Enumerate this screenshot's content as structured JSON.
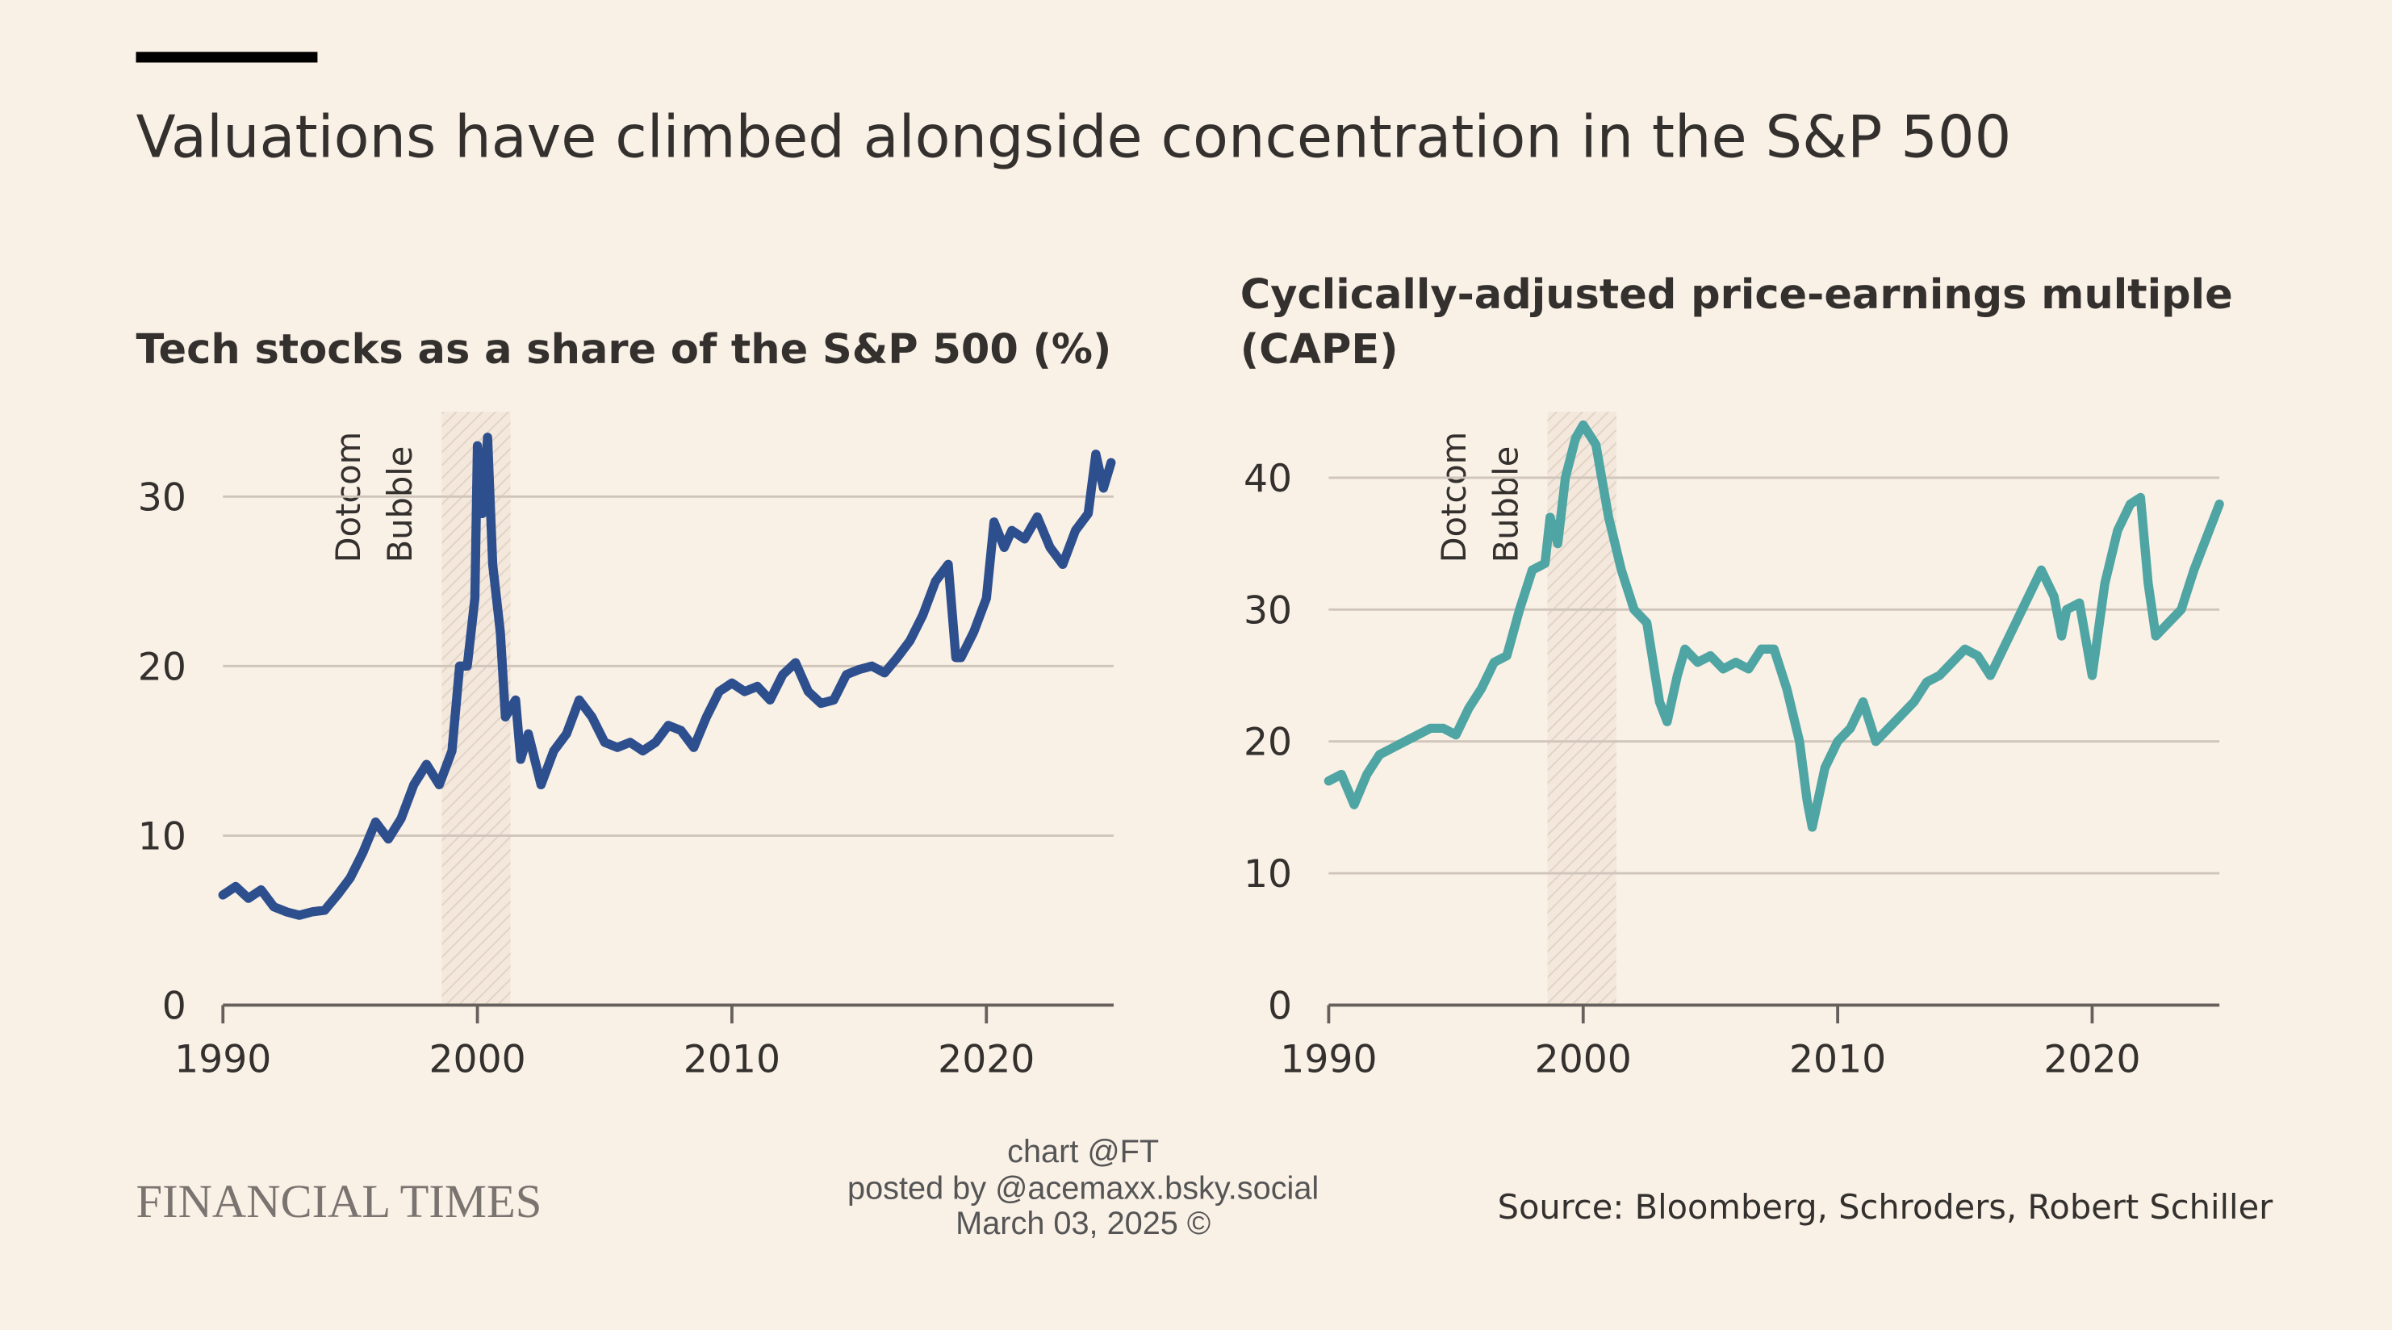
{
  "title": "Valuations have climbed alongside concentration in the S&P 500",
  "chart_data": [
    {
      "type": "line",
      "title": [
        "Tech stocks as a share of the S&P 500 (%)"
      ],
      "annotations": [
        "Dotcom",
        "Bubble"
      ],
      "highlight_x": [
        1998.6,
        2001.3
      ],
      "xlim": [
        1990,
        2025
      ],
      "xticks": [
        1990,
        2000,
        2010,
        2020
      ],
      "ylim": [
        0,
        35
      ],
      "yticks": [
        0,
        10,
        20,
        30
      ],
      "grid": true,
      "series": [
        {
          "color": "#2d4f8e",
          "x": [
            1990,
            1990.5,
            1991,
            1991.5,
            1992,
            1992.5,
            1993,
            1993.5,
            1994,
            1994.5,
            1995,
            1995.5,
            1996,
            1996.5,
            1997,
            1997.5,
            1998,
            1998.5,
            1999,
            1999.3,
            1999.6,
            1999.9,
            2000,
            2000.2,
            2000.4,
            2000.6,
            2000.9,
            2001.1,
            2001.5,
            2001.7,
            2002,
            2002.5,
            2003,
            2003.5,
            2004,
            2004.5,
            2005,
            2005.5,
            2006,
            2006.5,
            2007,
            2007.5,
            2008,
            2008.5,
            2009,
            2009.5,
            2010,
            2010.5,
            2011,
            2011.5,
            2012,
            2012.5,
            2013,
            2013.5,
            2014,
            2014.5,
            2015,
            2015.5,
            2016,
            2016.5,
            2017,
            2017.5,
            2018,
            2018.5,
            2018.8,
            2019,
            2019.5,
            2020,
            2020.3,
            2020.7,
            2021,
            2021.5,
            2022,
            2022.5,
            2023,
            2023.5,
            2024,
            2024.3,
            2024.6,
            2024.9
          ],
          "values": [
            6.5,
            7,
            6.3,
            6.8,
            5.8,
            5.5,
            5.3,
            5.5,
            5.6,
            6.5,
            7.5,
            9,
            10.8,
            9.8,
            11,
            13,
            14.2,
            13,
            15,
            20,
            20,
            24,
            33,
            29,
            33.5,
            26,
            22,
            17,
            18,
            14.5,
            16,
            13,
            15,
            16,
            18,
            17,
            15.5,
            15.2,
            15.5,
            15,
            15.5,
            16.5,
            16.2,
            15.2,
            17,
            18.5,
            19,
            18.5,
            18.8,
            18,
            19.5,
            20.2,
            18.5,
            17.8,
            18,
            19.5,
            19.8,
            20,
            19.6,
            20.5,
            21.5,
            23,
            25,
            26,
            20.5,
            20.5,
            22,
            24,
            28.5,
            27,
            28,
            27.5,
            28.8,
            27,
            26,
            28,
            29,
            32.5,
            30.5,
            32
          ]
        }
      ]
    },
    {
      "type": "line",
      "title": [
        "Cyclically-adjusted price-earnings multiple",
        "(CAPE)"
      ],
      "annotations": [
        "Dotcom",
        "Bubble"
      ],
      "highlight_x": [
        1998.6,
        2001.3
      ],
      "xlim": [
        1990,
        2025
      ],
      "xticks": [
        1990,
        2000,
        2010,
        2020
      ],
      "ylim": [
        0,
        45
      ],
      "yticks": [
        0,
        10,
        20,
        30,
        40
      ],
      "grid": true,
      "series": [
        {
          "color": "#4fa5a3",
          "x": [
            1990,
            1990.5,
            1991,
            1991.5,
            1992,
            1992.5,
            1993,
            1993.5,
            1994,
            1994.5,
            1995,
            1995.5,
            1996,
            1996.5,
            1997,
            1997.5,
            1998,
            1998.5,
            1998.7,
            1999,
            1999.3,
            1999.7,
            2000,
            2000.5,
            2001,
            2001.5,
            2002,
            2002.5,
            2003,
            2003.3,
            2003.7,
            2004,
            2004.5,
            2005,
            2005.5,
            2006,
            2006.5,
            2007,
            2007.5,
            2008,
            2008.5,
            2008.8,
            2009,
            2009.5,
            2010,
            2010.5,
            2011,
            2011.5,
            2012,
            2012.5,
            2013,
            2013.5,
            2014,
            2014.5,
            2015,
            2015.5,
            2016,
            2016.5,
            2017,
            2017.5,
            2018,
            2018.5,
            2018.8,
            2019,
            2019.5,
            2020,
            2020.5,
            2021,
            2021.5,
            2021.9,
            2022.2,
            2022.5,
            2023,
            2023.5,
            2024,
            2024.5,
            2025
          ],
          "values": [
            17,
            17.5,
            15.2,
            17.5,
            19,
            19.5,
            20,
            20.5,
            21,
            21,
            20.5,
            22.5,
            24,
            26,
            26.5,
            30,
            33,
            33.5,
            37,
            35,
            40,
            43,
            44,
            42.5,
            37,
            33,
            30,
            29,
            23,
            21.5,
            25,
            27,
            26,
            26.5,
            25.5,
            26,
            25.5,
            27,
            27,
            24,
            20,
            15.5,
            13.5,
            18,
            20,
            21,
            23,
            20,
            21,
            22,
            23,
            24.5,
            25,
            26,
            27,
            26.5,
            25,
            27,
            29,
            31,
            33,
            31,
            28,
            30,
            30.5,
            25,
            32,
            36,
            38,
            38.5,
            32,
            28,
            29,
            30,
            33,
            35.5,
            38
          ]
        }
      ]
    }
  ],
  "footer": {
    "brand": "FINANCIAL TIMES",
    "credits": [
      "chart @FT",
      "posted by @acemaxx.bsky.social",
      "March 03, 2025 ©"
    ],
    "source": "Source: Bloomberg, Schroders, Robert Schiller"
  }
}
